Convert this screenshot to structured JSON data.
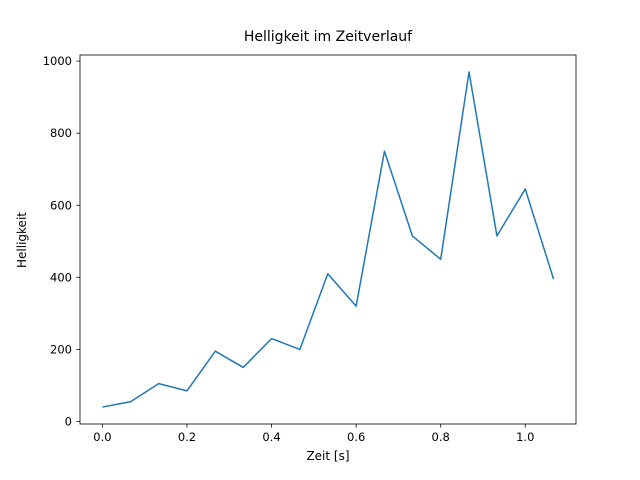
{
  "chart_data": {
    "type": "line",
    "title": "Helligkeit im Zeitverlauf",
    "xlabel": "Zeit [s]",
    "ylabel": "Helligkeit",
    "x": [
      0.0,
      0.067,
      0.133,
      0.2,
      0.267,
      0.333,
      0.4,
      0.467,
      0.533,
      0.6,
      0.667,
      0.733,
      0.8,
      0.867,
      0.933,
      1.0,
      1.067
    ],
    "y": [
      40,
      55,
      105,
      85,
      195,
      150,
      230,
      200,
      410,
      320,
      750,
      515,
      450,
      970,
      515,
      645,
      395
    ],
    "x_ticks": [
      0.0,
      0.2,
      0.4,
      0.6,
      0.8,
      1.0
    ],
    "x_tick_labels": [
      "0.0",
      "0.2",
      "0.4",
      "0.6",
      "0.8",
      "1.0"
    ],
    "y_ticks": [
      0,
      200,
      400,
      600,
      800,
      1000
    ],
    "y_tick_labels": [
      "0",
      "200",
      "400",
      "600",
      "800",
      "1000"
    ],
    "xlim": [
      -0.053,
      1.12
    ],
    "ylim": [
      -7,
      1017
    ],
    "line_color": "#1f77b4",
    "axis_color": "#000000",
    "grid": false,
    "legend_position": "none"
  }
}
